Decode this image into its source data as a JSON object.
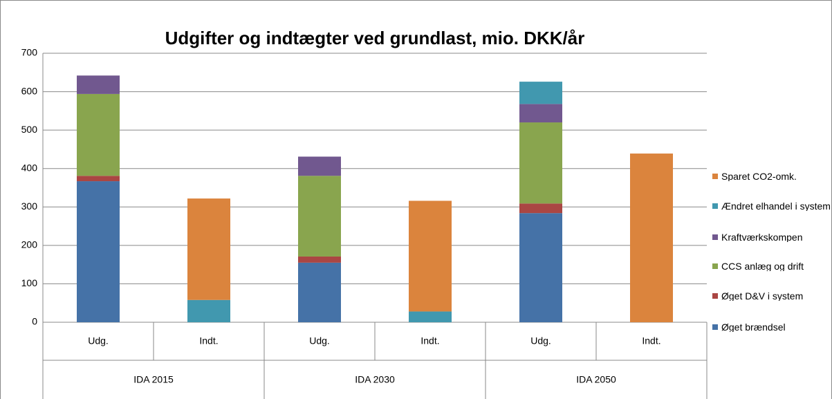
{
  "chart_data": {
    "type": "stacked_bar",
    "title": "Udgifter og indtægter ved grundlast, mio. DKK/år",
    "categories": [
      "Udg.",
      "Indt.",
      "Udg.",
      "Indt.",
      "Udg.",
      "Indt."
    ],
    "groups": [
      "IDA 2015",
      "IDA 2030",
      "IDA 2050"
    ],
    "series": [
      {
        "name": "Øget brændsel",
        "color": "#4572a7",
        "values": [
          367,
          null,
          155,
          null,
          284,
          null
        ]
      },
      {
        "name": "Øget D&V i system",
        "color": "#aa4643",
        "values": [
          14,
          null,
          16,
          null,
          25,
          null
        ]
      },
      {
        "name": "CCS anlæg og drift",
        "color": "#89a54e",
        "values": [
          213,
          null,
          210,
          null,
          211,
          null
        ]
      },
      {
        "name": "Kraftværkskompen",
        "color": "#71588f",
        "values": [
          48,
          null,
          50,
          null,
          48,
          null
        ]
      },
      {
        "name": "Ændret elhandel i system",
        "color": "#4198af",
        "values": [
          null,
          58,
          null,
          28,
          58,
          null
        ]
      },
      {
        "name": "Sparet CO2-omk.",
        "color": "#db843d",
        "values": [
          null,
          264,
          null,
          288,
          null,
          439
        ]
      }
    ],
    "ylim": [
      0,
      700
    ],
    "yticks": [
      0,
      100,
      200,
      300,
      400,
      500,
      600,
      700
    ],
    "grid": true,
    "legend": "right"
  }
}
